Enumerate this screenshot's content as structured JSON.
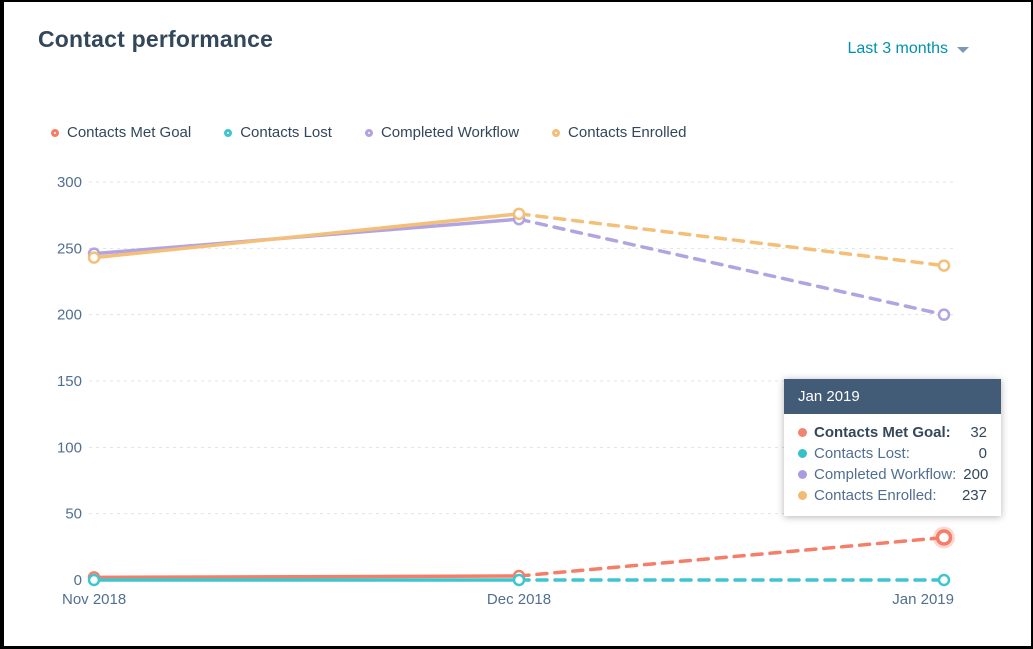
{
  "header": {
    "title": "Contact performance",
    "range_label": "Last 3 months"
  },
  "colors": {
    "title_text": "#33475b",
    "axis_text": "#516f90",
    "link_teal": "#0091ae",
    "gridline": "#dde4ee",
    "tooltip_header_bg": "#425b76",
    "met_goal": "#f47e68",
    "lost": "#3fc5cf",
    "workflow": "#b2a4e0",
    "enrolled": "#f3bf79"
  },
  "legend": [
    {
      "label": "Contacts Met Goal",
      "color": "#f47e68"
    },
    {
      "label": "Contacts Lost",
      "color": "#3fc5cf"
    },
    {
      "label": "Completed Workflow",
      "color": "#b2a4e0"
    },
    {
      "label": "Contacts Enrolled",
      "color": "#f3bf79"
    }
  ],
  "chart_data": {
    "type": "line",
    "title": "Contact performance",
    "x": [
      "Nov 2018",
      "Dec 2018",
      "Jan 2019"
    ],
    "series": [
      {
        "name": "Contacts Met Goal",
        "color": "#f47e68",
        "values": [
          2,
          3,
          32
        ]
      },
      {
        "name": "Contacts Lost",
        "color": "#3fc5cf",
        "values": [
          0,
          0,
          0
        ]
      },
      {
        "name": "Completed Workflow",
        "color": "#b2a4e0",
        "values": [
          246,
          272,
          200
        ]
      },
      {
        "name": "Contacts Enrolled",
        "color": "#f3bf79",
        "values": [
          243,
          276,
          237
        ]
      }
    ],
    "ylim": [
      0,
      300
    ],
    "yticks": [
      0,
      50,
      100,
      150,
      200,
      250,
      300
    ],
    "grid": "horizontal-dashed",
    "legend_position": "top",
    "dashed_from_index": 1,
    "highlight_point": {
      "series": "Contacts Met Goal",
      "x": "Jan 2019"
    }
  },
  "tooltip": {
    "title": "Jan 2019",
    "rows": [
      {
        "label": "Contacts Met Goal:",
        "value": "32",
        "color": "#f2836f",
        "bold": true
      },
      {
        "label": "Contacts Lost:",
        "value": "0",
        "color": "#37c0c8",
        "bold": false
      },
      {
        "label": "Completed Workflow:",
        "value": "200",
        "color": "#a99ce0",
        "bold": false
      },
      {
        "label": "Contacts Enrolled:",
        "value": "237",
        "color": "#f0bc72",
        "bold": false
      }
    ]
  }
}
